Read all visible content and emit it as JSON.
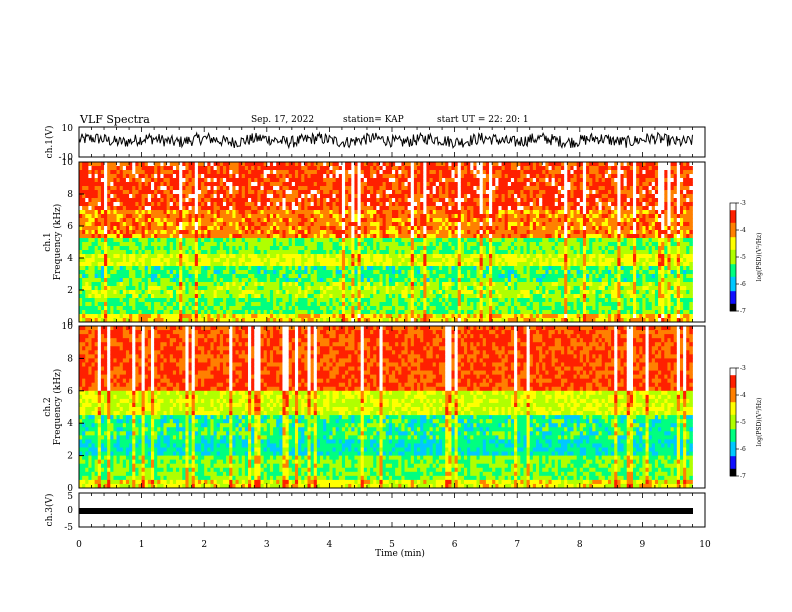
{
  "header": {
    "title": "VLF Spectra",
    "date": "Sep. 17, 2022",
    "station": "station= KAP",
    "start": "start  UT  =   22: 20: 1"
  },
  "colors": {
    "frame": "#000000",
    "trace": "#000000",
    "colormap": [
      "#000000",
      "#1010ff",
      "#00c8ff",
      "#00ff80",
      "#b0ff00",
      "#ffff00",
      "#ff8000",
      "#ff2000",
      "#ffffff"
    ]
  },
  "chart_data": [
    {
      "type": "line",
      "ylabel": "ch.1(V)",
      "ylim": [
        -10,
        10
      ],
      "yticks": [
        "10",
        "-10"
      ],
      "xlim": [
        0,
        10
      ],
      "note_visual": "noisy waveform roughly between -3 and 6 V across the whole record"
    },
    {
      "type": "heatmap",
      "ylabel": "ch.1\nFrequency  (kHz)",
      "ylabel_lines": [
        "ch.1",
        "Frequency  (kHz)"
      ],
      "ylim": [
        0,
        10
      ],
      "yticks": [
        "0",
        "2",
        "4",
        "6",
        "8",
        "10"
      ],
      "xlim": [
        0,
        9.8
      ],
      "colorbar": {
        "label": "log(PSD)(V²/Hz)",
        "range": [
          -7,
          -3
        ],
        "ticks": [
          "-3",
          "-4",
          "-5",
          "-6",
          "-7"
        ]
      },
      "bands_kHz": [
        {
          "from": 0.0,
          "to": 0.5,
          "level": -4.4
        },
        {
          "from": 0.5,
          "to": 1.6,
          "level": -5.3
        },
        {
          "from": 1.6,
          "to": 2.6,
          "level": -5.0
        },
        {
          "from": 2.6,
          "to": 3.6,
          "level": -5.4
        },
        {
          "from": 3.6,
          "to": 4.2,
          "level": -4.7
        },
        {
          "from": 4.2,
          "to": 5.2,
          "level": -5.2
        },
        {
          "from": 5.2,
          "to": 7.0,
          "level": -4.0
        },
        {
          "from": 7.0,
          "to": 10.0,
          "level": -3.6
        }
      ]
    },
    {
      "type": "heatmap",
      "ylabel_lines": [
        "ch.2",
        "Frequency  (kHz)"
      ],
      "ylim": [
        0,
        10
      ],
      "yticks": [
        "0",
        "2",
        "4",
        "6",
        "8",
        "10"
      ],
      "xlim": [
        0,
        9.8
      ],
      "colorbar": {
        "label": "log(PSD)(V²/Hz)",
        "range": [
          -7,
          -3
        ],
        "ticks": [
          "-3",
          "-4",
          "-5",
          "-6",
          "-7"
        ]
      },
      "bands_kHz": [
        {
          "from": 0.0,
          "to": 0.5,
          "level": -4.6
        },
        {
          "from": 0.5,
          "to": 2.0,
          "level": -5.2
        },
        {
          "from": 2.0,
          "to": 3.0,
          "level": -5.7
        },
        {
          "from": 3.0,
          "to": 4.5,
          "level": -5.5
        },
        {
          "from": 4.5,
          "to": 6.0,
          "level": -4.8
        },
        {
          "from": 6.0,
          "to": 10.0,
          "level": -3.7
        }
      ]
    },
    {
      "type": "line",
      "ylabel": "ch.3(V)",
      "ylim": [
        -5,
        5
      ],
      "yticks": [
        "5",
        "0",
        "-5"
      ],
      "xlim": [
        0,
        9.8
      ],
      "note_visual": "flat thick trace near -1 V"
    }
  ],
  "xaxis": {
    "label": "Time  (min)",
    "ticks": [
      "0",
      "1",
      "2",
      "3",
      "4",
      "5",
      "6",
      "7",
      "8",
      "9",
      "10"
    ],
    "range": [
      0,
      10
    ]
  }
}
